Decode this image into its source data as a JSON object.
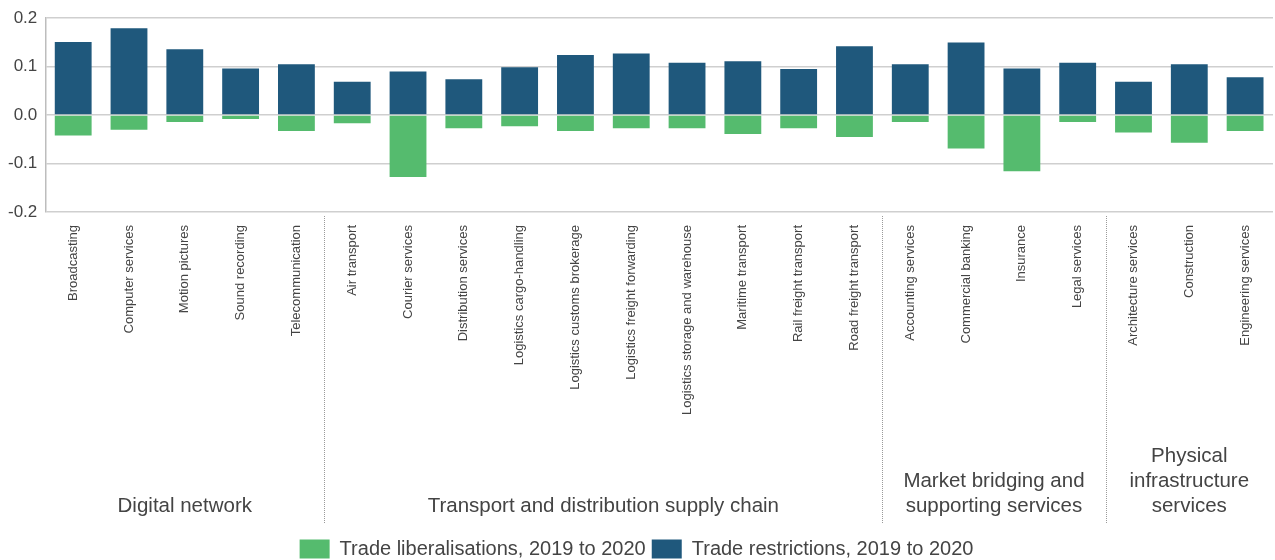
{
  "chart_data": {
    "type": "bar",
    "stacked": true,
    "categories": [
      "Broadcasting",
      "Computer services",
      "Motion pictures",
      "Sound recording",
      "Telecommunication",
      "Air transport",
      "Courier services",
      "Distribution services",
      "Logistics cargo-handling",
      "Logistics customs brokerage",
      "Logistics freight forwarding",
      "Logistics storage and warehouse",
      "Maritime transport",
      "Rail freight transport",
      "Road freight transport",
      "Accounting services",
      "Commercial banking",
      "Insurance",
      "Legal services",
      "Architecture services",
      "Construction",
      "Engineering services"
    ],
    "series": [
      {
        "name": "Trade liberalisations, 2019 to 2020",
        "color": "#55bb6e",
        "values": [
          -0.042,
          -0.03,
          -0.014,
          -0.008,
          -0.033,
          -0.017,
          -0.128,
          -0.027,
          -0.023,
          -0.033,
          -0.027,
          -0.027,
          -0.039,
          -0.027,
          -0.045,
          -0.014,
          -0.069,
          -0.116,
          -0.014,
          -0.036,
          -0.057,
          -0.033
        ]
      },
      {
        "name": "Trade restrictions, 2019 to 2020",
        "color": "#1f587c",
        "values": [
          0.151,
          0.179,
          0.136,
          0.096,
          0.105,
          0.069,
          0.09,
          0.074,
          0.099,
          0.124,
          0.127,
          0.108,
          0.111,
          0.095,
          0.142,
          0.105,
          0.15,
          0.096,
          0.108,
          0.069,
          0.105,
          0.078
        ]
      }
    ],
    "ylim": [
      -0.2,
      0.2
    ],
    "yticks": [
      -0.2,
      -0.1,
      {
        "value": 0,
        "label": "0.0"
      },
      0.1,
      0.2
    ],
    "grid": "y",
    "legend": "bottom",
    "annotations": [
      "Digital network",
      "Transport and distribution supply chain",
      "Market bridging and supporting services",
      "Physical infrastructure services"
    ]
  }
}
